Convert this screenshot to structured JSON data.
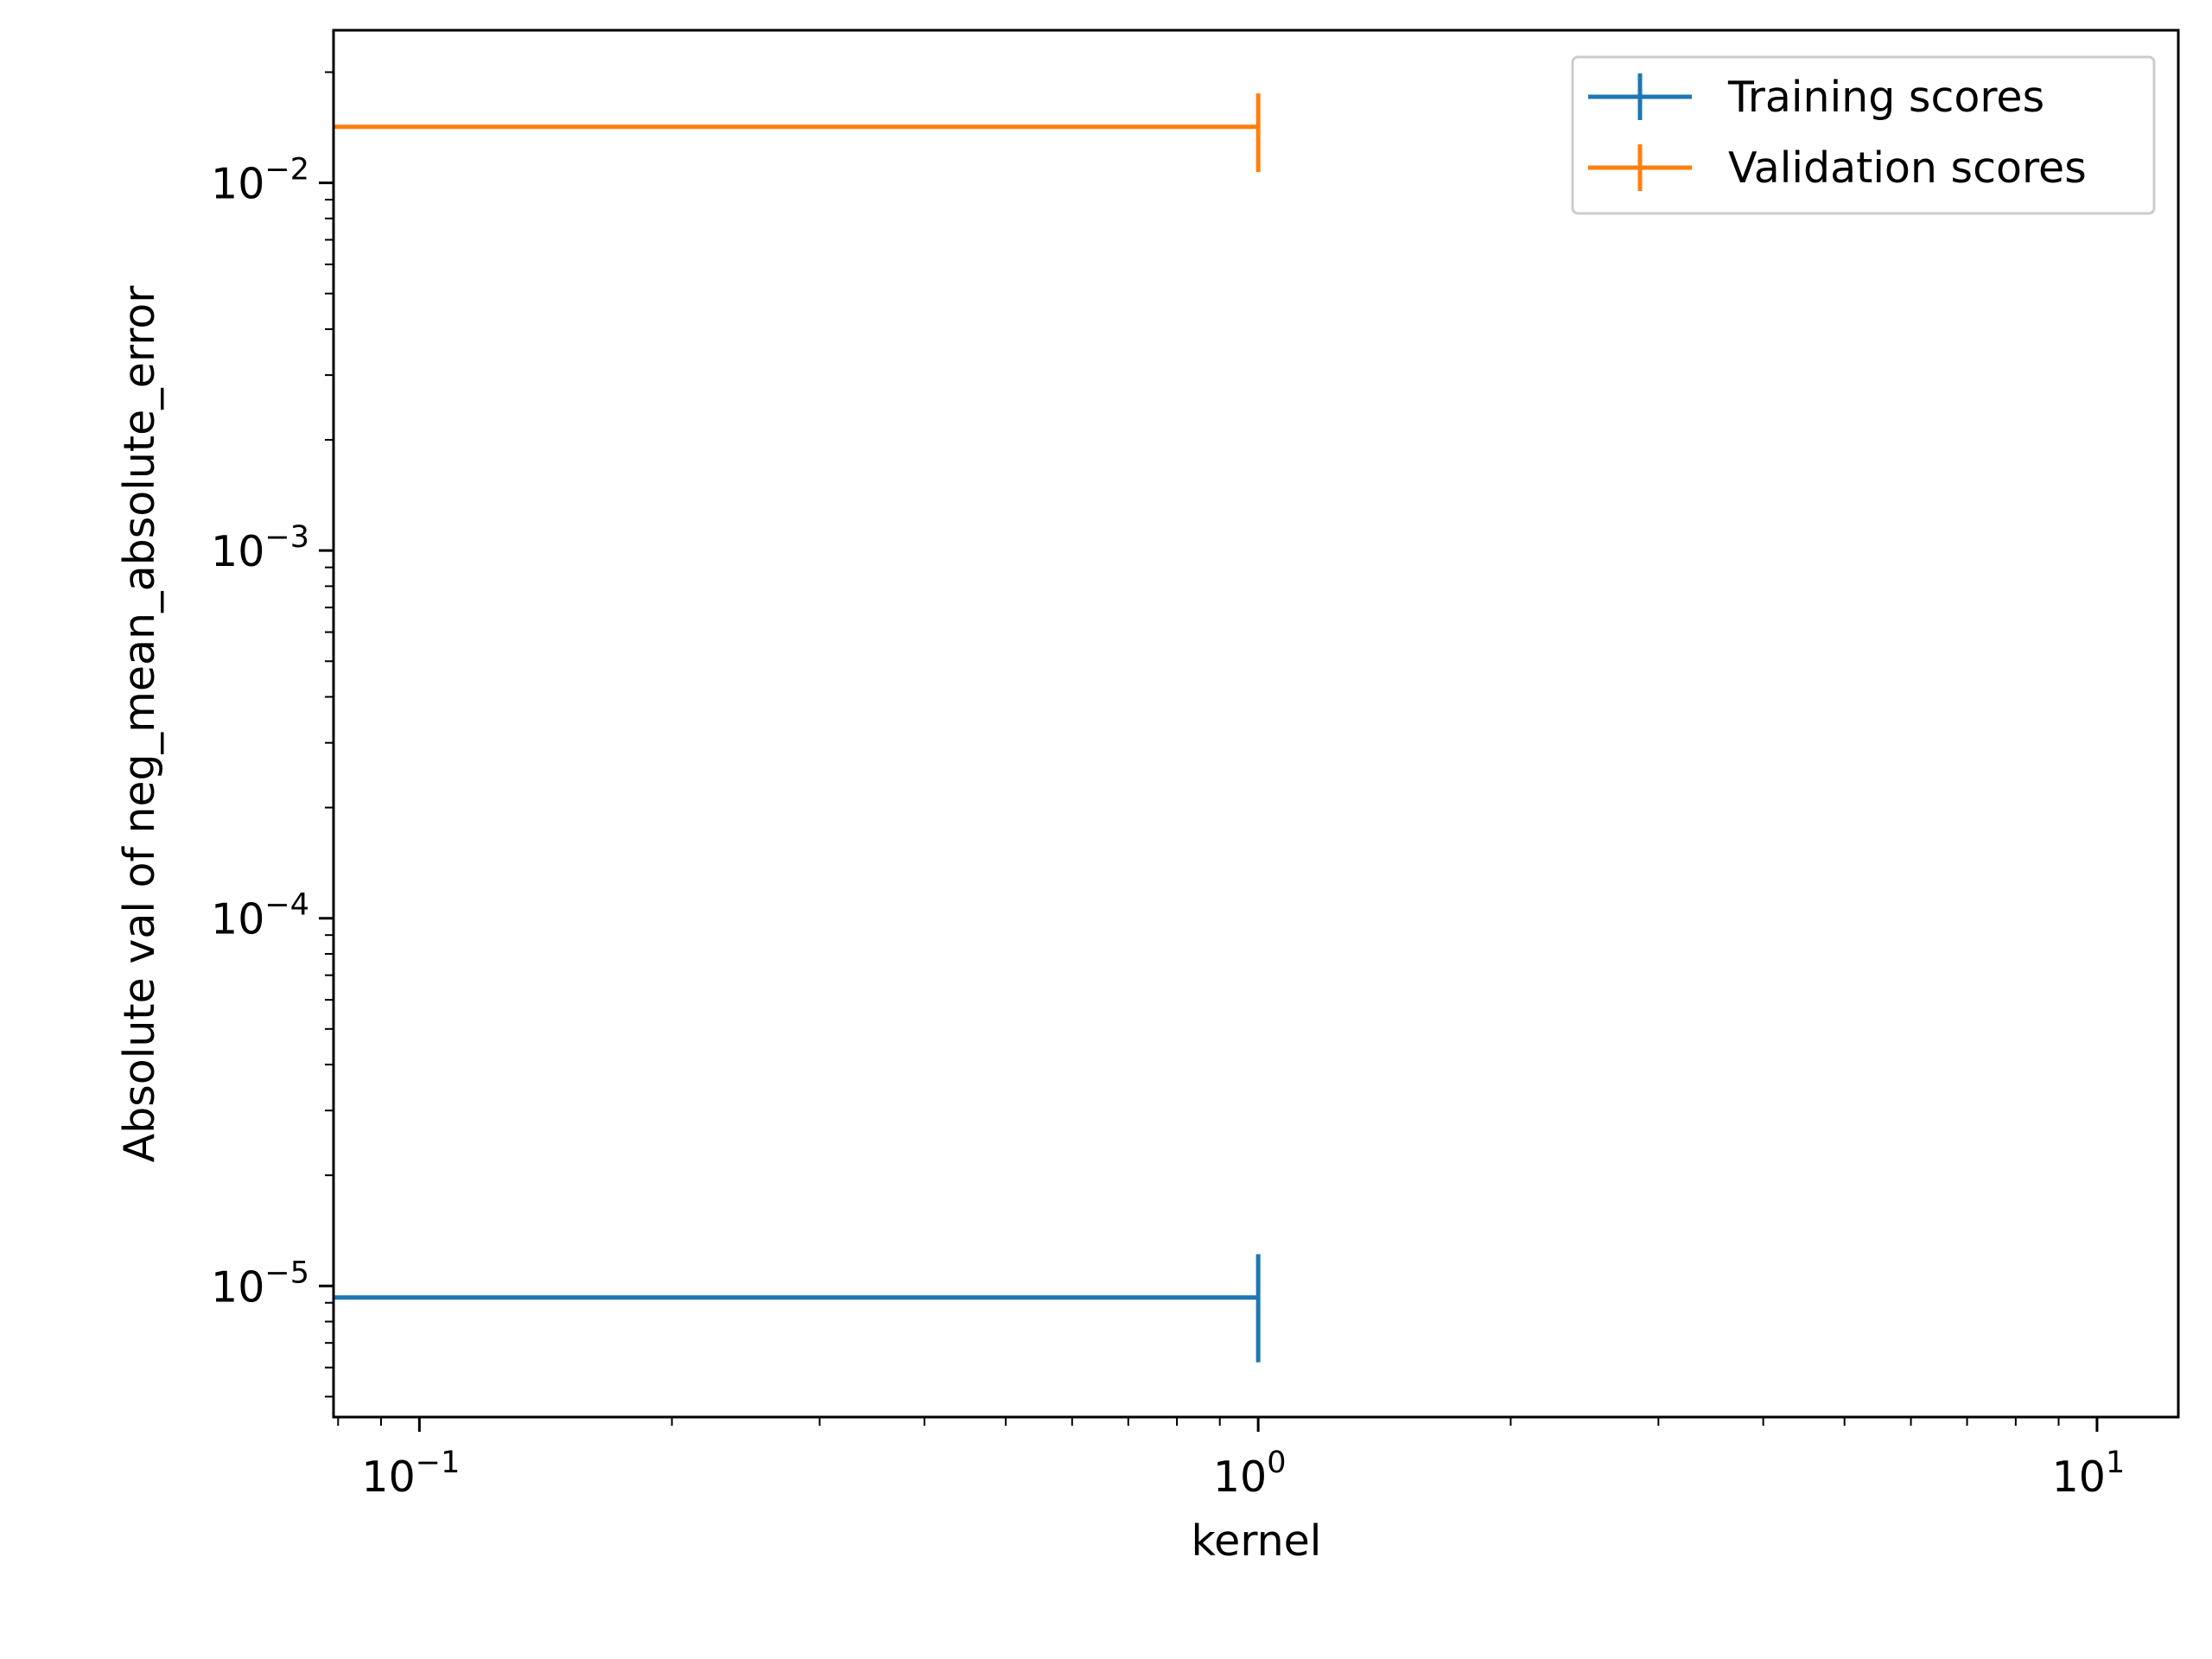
{
  "chart_data": {
    "type": "line",
    "title": "",
    "xlabel": "kernel",
    "ylabel": "Absolute val of neg_mean_absolute_error",
    "xscale": "log",
    "yscale": "log",
    "xlim": [
      0.079,
      12.5
    ],
    "ylim": [
      4.4e-06,
      0.026
    ],
    "grid": false,
    "legend_position": "top-right",
    "x_ticks": [
      {
        "value": 0.1,
        "base": "10",
        "exp": "−1"
      },
      {
        "value": 1,
        "base": "10",
        "exp": "0"
      },
      {
        "value": 10,
        "base": "10",
        "exp": "1"
      }
    ],
    "y_ticks": [
      {
        "value": 1e-05,
        "base": "10",
        "exp": "−5"
      },
      {
        "value": 0.0001,
        "base": "10",
        "exp": "−4"
      },
      {
        "value": 0.001,
        "base": "10",
        "exp": "−3"
      },
      {
        "value": 0.01,
        "base": "10",
        "exp": "−2"
      }
    ],
    "series": [
      {
        "name": "Training scores",
        "color": "#1f77b4",
        "x": [
          0.079,
          1
        ],
        "y": [
          9.3e-06,
          9.3e-06
        ],
        "error_at_x": 1,
        "error": [
          6.2e-06,
          1.22e-05
        ]
      },
      {
        "name": "Validation scores",
        "color": "#ff7f0e",
        "x": [
          0.079,
          1
        ],
        "y": [
          0.0142,
          0.0142
        ],
        "error_at_x": 1,
        "error": [
          0.0107,
          0.0175
        ]
      }
    ]
  }
}
